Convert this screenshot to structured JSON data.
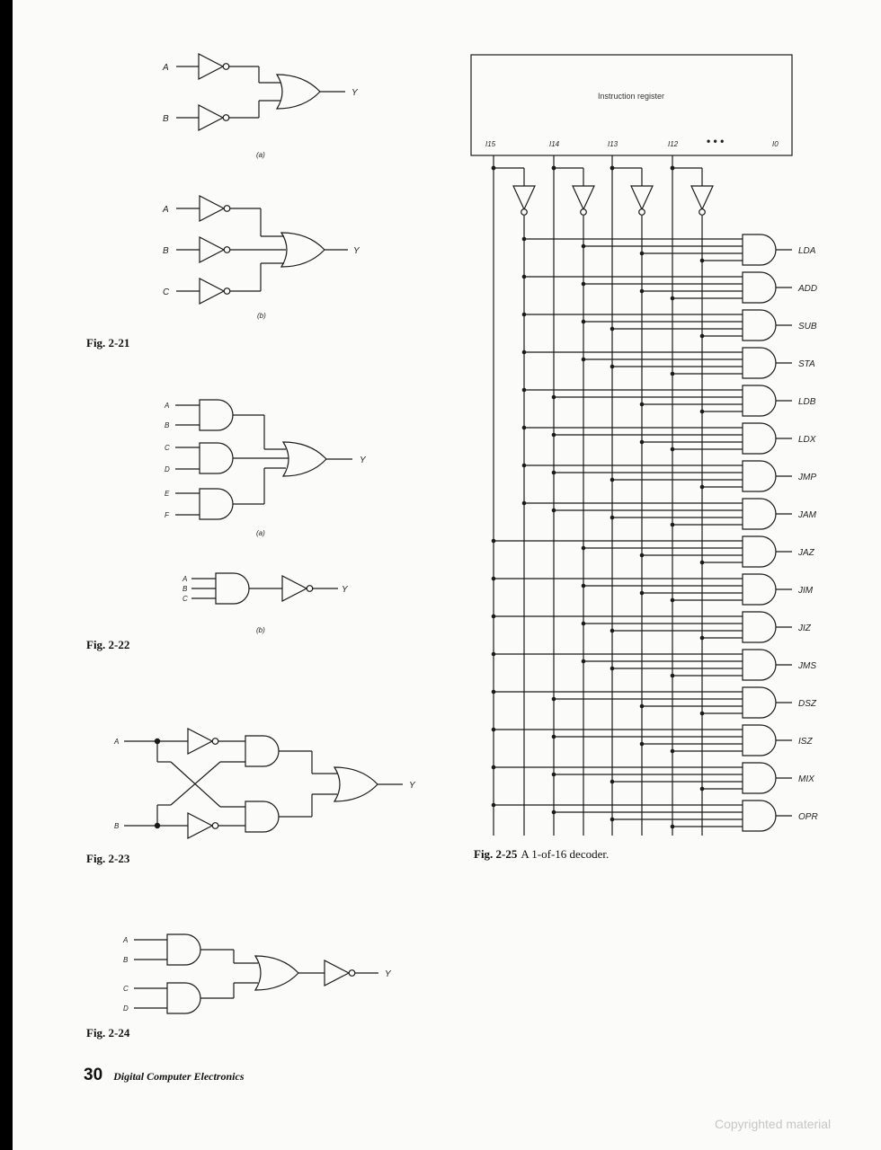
{
  "figures": {
    "fig_2_21": {
      "label": "Fig. 2-21",
      "sub_a": "(a)",
      "sub_b": "(b)",
      "inputs_a": [
        "A",
        "B"
      ],
      "inputs_b": [
        "A",
        "B",
        "C"
      ],
      "output": "Y"
    },
    "fig_2_22": {
      "label": "Fig. 2-22",
      "sub_a": "(a)",
      "sub_b": "(b)",
      "inputs_a": [
        "A",
        "B",
        "C",
        "D",
        "E",
        "F"
      ],
      "inputs_b": [
        "A",
        "B",
        "C"
      ],
      "output": "Y"
    },
    "fig_2_23": {
      "label": "Fig. 2-23",
      "inputs": [
        "A",
        "B"
      ],
      "output": "Y"
    },
    "fig_2_24": {
      "label": "Fig. 2-24",
      "inputs": [
        "A",
        "B",
        "C",
        "D"
      ],
      "output": "Y"
    },
    "fig_2_25": {
      "label": "Fig. 2-25",
      "caption": "A 1-of-16 decoder.",
      "register": "Instruction register",
      "pins": [
        "I15",
        "I14",
        "I13",
        "I12",
        "• • •",
        "I0"
      ],
      "outputs": [
        "LDA",
        "ADD",
        "SUB",
        "STA",
        "LDB",
        "LDX",
        "JMP",
        "JAM",
        "JAZ",
        "JIM",
        "JIZ",
        "JMS",
        "DSZ",
        "ISZ",
        "MIX",
        "OPR"
      ]
    }
  },
  "footer": {
    "page_number": "30",
    "book_title": "Digital Computer Electronics"
  },
  "watermark": "Copyrighted material"
}
